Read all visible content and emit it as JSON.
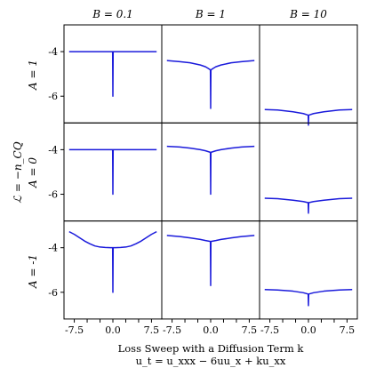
{
  "chart_data": {
    "type": "line",
    "layout": "3x3 small multiples",
    "column_labels": [
      "B = 0.1",
      "B = 1",
      "B = 10"
    ],
    "row_labels": [
      "A = 1",
      "A = 0",
      "A = -1"
    ],
    "shared_ylabel": "ℒ = −n_CQ",
    "xlabel_line1": "Loss Sweep with a Diffusion Term k",
    "xlabel_line2": "u_t = u_xxx − 6uu_x + ku_xx",
    "xticks": [
      "-7.5",
      "-5.0",
      "-2.5",
      "0.0",
      "2.5",
      "5.0",
      "7.5"
    ],
    "xtick_values": [
      -7.5,
      -5.0,
      -2.5,
      0.0,
      2.5,
      5.0,
      7.5
    ],
    "yticks": [
      "-4",
      "-6"
    ],
    "ytick_values": [
      -4,
      -6
    ],
    "xlim": [
      -9.5,
      9.5
    ],
    "ylim": [
      -7.2,
      -2.8
    ],
    "series_color": "#1a1adb",
    "panels": [
      {
        "row": 0,
        "col": 0,
        "x": [
          -8.5,
          -0.05,
          0,
          0.05,
          8.5
        ],
        "y": [
          -4.0,
          -4.0,
          -6.0,
          -4.0,
          -4.0
        ]
      },
      {
        "row": 0,
        "col": 1,
        "x": [
          -8.5,
          -6,
          -4,
          -2,
          -1,
          -0.5,
          -0.05,
          0,
          0.05,
          0.5,
          1,
          2,
          4,
          6,
          8.5
        ],
        "y": [
          -4.4,
          -4.45,
          -4.5,
          -4.6,
          -4.68,
          -4.75,
          -4.82,
          -6.55,
          -4.82,
          -4.75,
          -4.68,
          -4.6,
          -4.5,
          -4.45,
          -4.4
        ]
      },
      {
        "row": 0,
        "col": 2,
        "x": [
          -8.5,
          -6,
          -3,
          -1,
          -0.05,
          0,
          0.05,
          1,
          3,
          6,
          8.5
        ],
        "y": [
          -6.6,
          -6.62,
          -6.7,
          -6.78,
          -6.85,
          -7.3,
          -6.85,
          -6.78,
          -6.7,
          -6.62,
          -6.6
        ]
      },
      {
        "row": 1,
        "col": 0,
        "x": [
          -8.5,
          -0.05,
          0,
          0.05,
          8.5
        ],
        "y": [
          -4.0,
          -4.0,
          -6.0,
          -4.0,
          -4.0
        ]
      },
      {
        "row": 1,
        "col": 1,
        "x": [
          -8.5,
          -6,
          -4,
          -2,
          -1,
          -0.05,
          0,
          0.05,
          1,
          2,
          4,
          6,
          8.5
        ],
        "y": [
          -3.85,
          -3.88,
          -3.93,
          -4.0,
          -4.05,
          -4.12,
          -6.0,
          -4.12,
          -4.05,
          -4.0,
          -3.93,
          -3.88,
          -3.85
        ]
      },
      {
        "row": 1,
        "col": 2,
        "x": [
          -8.5,
          -6,
          -3,
          -1,
          -0.05,
          0,
          0.05,
          1,
          3,
          6,
          8.5
        ],
        "y": [
          -6.18,
          -6.2,
          -6.27,
          -6.33,
          -6.38,
          -6.85,
          -6.38,
          -6.33,
          -6.27,
          -6.2,
          -6.18
        ]
      },
      {
        "row": 2,
        "col": 0,
        "x": [
          -8.5,
          -7.5,
          -6.5,
          -5.5,
          -4.5,
          -3.5,
          -2.5,
          -1.5,
          -0.5,
          -0.05,
          0,
          0.05,
          0.5,
          1.5,
          2.5,
          3.5,
          4.5,
          5.5,
          6.5,
          7.5,
          8.5
        ],
        "y": [
          -3.28,
          -3.4,
          -3.55,
          -3.7,
          -3.82,
          -3.92,
          -3.97,
          -3.99,
          -4.0,
          -4.0,
          -6.0,
          -4.0,
          -4.0,
          -3.99,
          -3.97,
          -3.92,
          -3.82,
          -3.7,
          -3.55,
          -3.4,
          -3.28
        ]
      },
      {
        "row": 2,
        "col": 1,
        "x": [
          -8.5,
          -6,
          -4,
          -2,
          -1,
          -0.05,
          0,
          0.05,
          1,
          2,
          4,
          6,
          8.5
        ],
        "y": [
          -3.45,
          -3.5,
          -3.56,
          -3.63,
          -3.68,
          -3.72,
          -5.7,
          -3.72,
          -3.68,
          -3.63,
          -3.56,
          -3.5,
          -3.45
        ]
      },
      {
        "row": 2,
        "col": 2,
        "x": [
          -8.5,
          -6,
          -3,
          -1,
          -0.05,
          0,
          0.05,
          1,
          3,
          6,
          8.5
        ],
        "y": [
          -5.88,
          -5.9,
          -5.95,
          -6.02,
          -6.08,
          -6.6,
          -6.08,
          -6.02,
          -5.95,
          -5.9,
          -5.88
        ]
      }
    ]
  }
}
